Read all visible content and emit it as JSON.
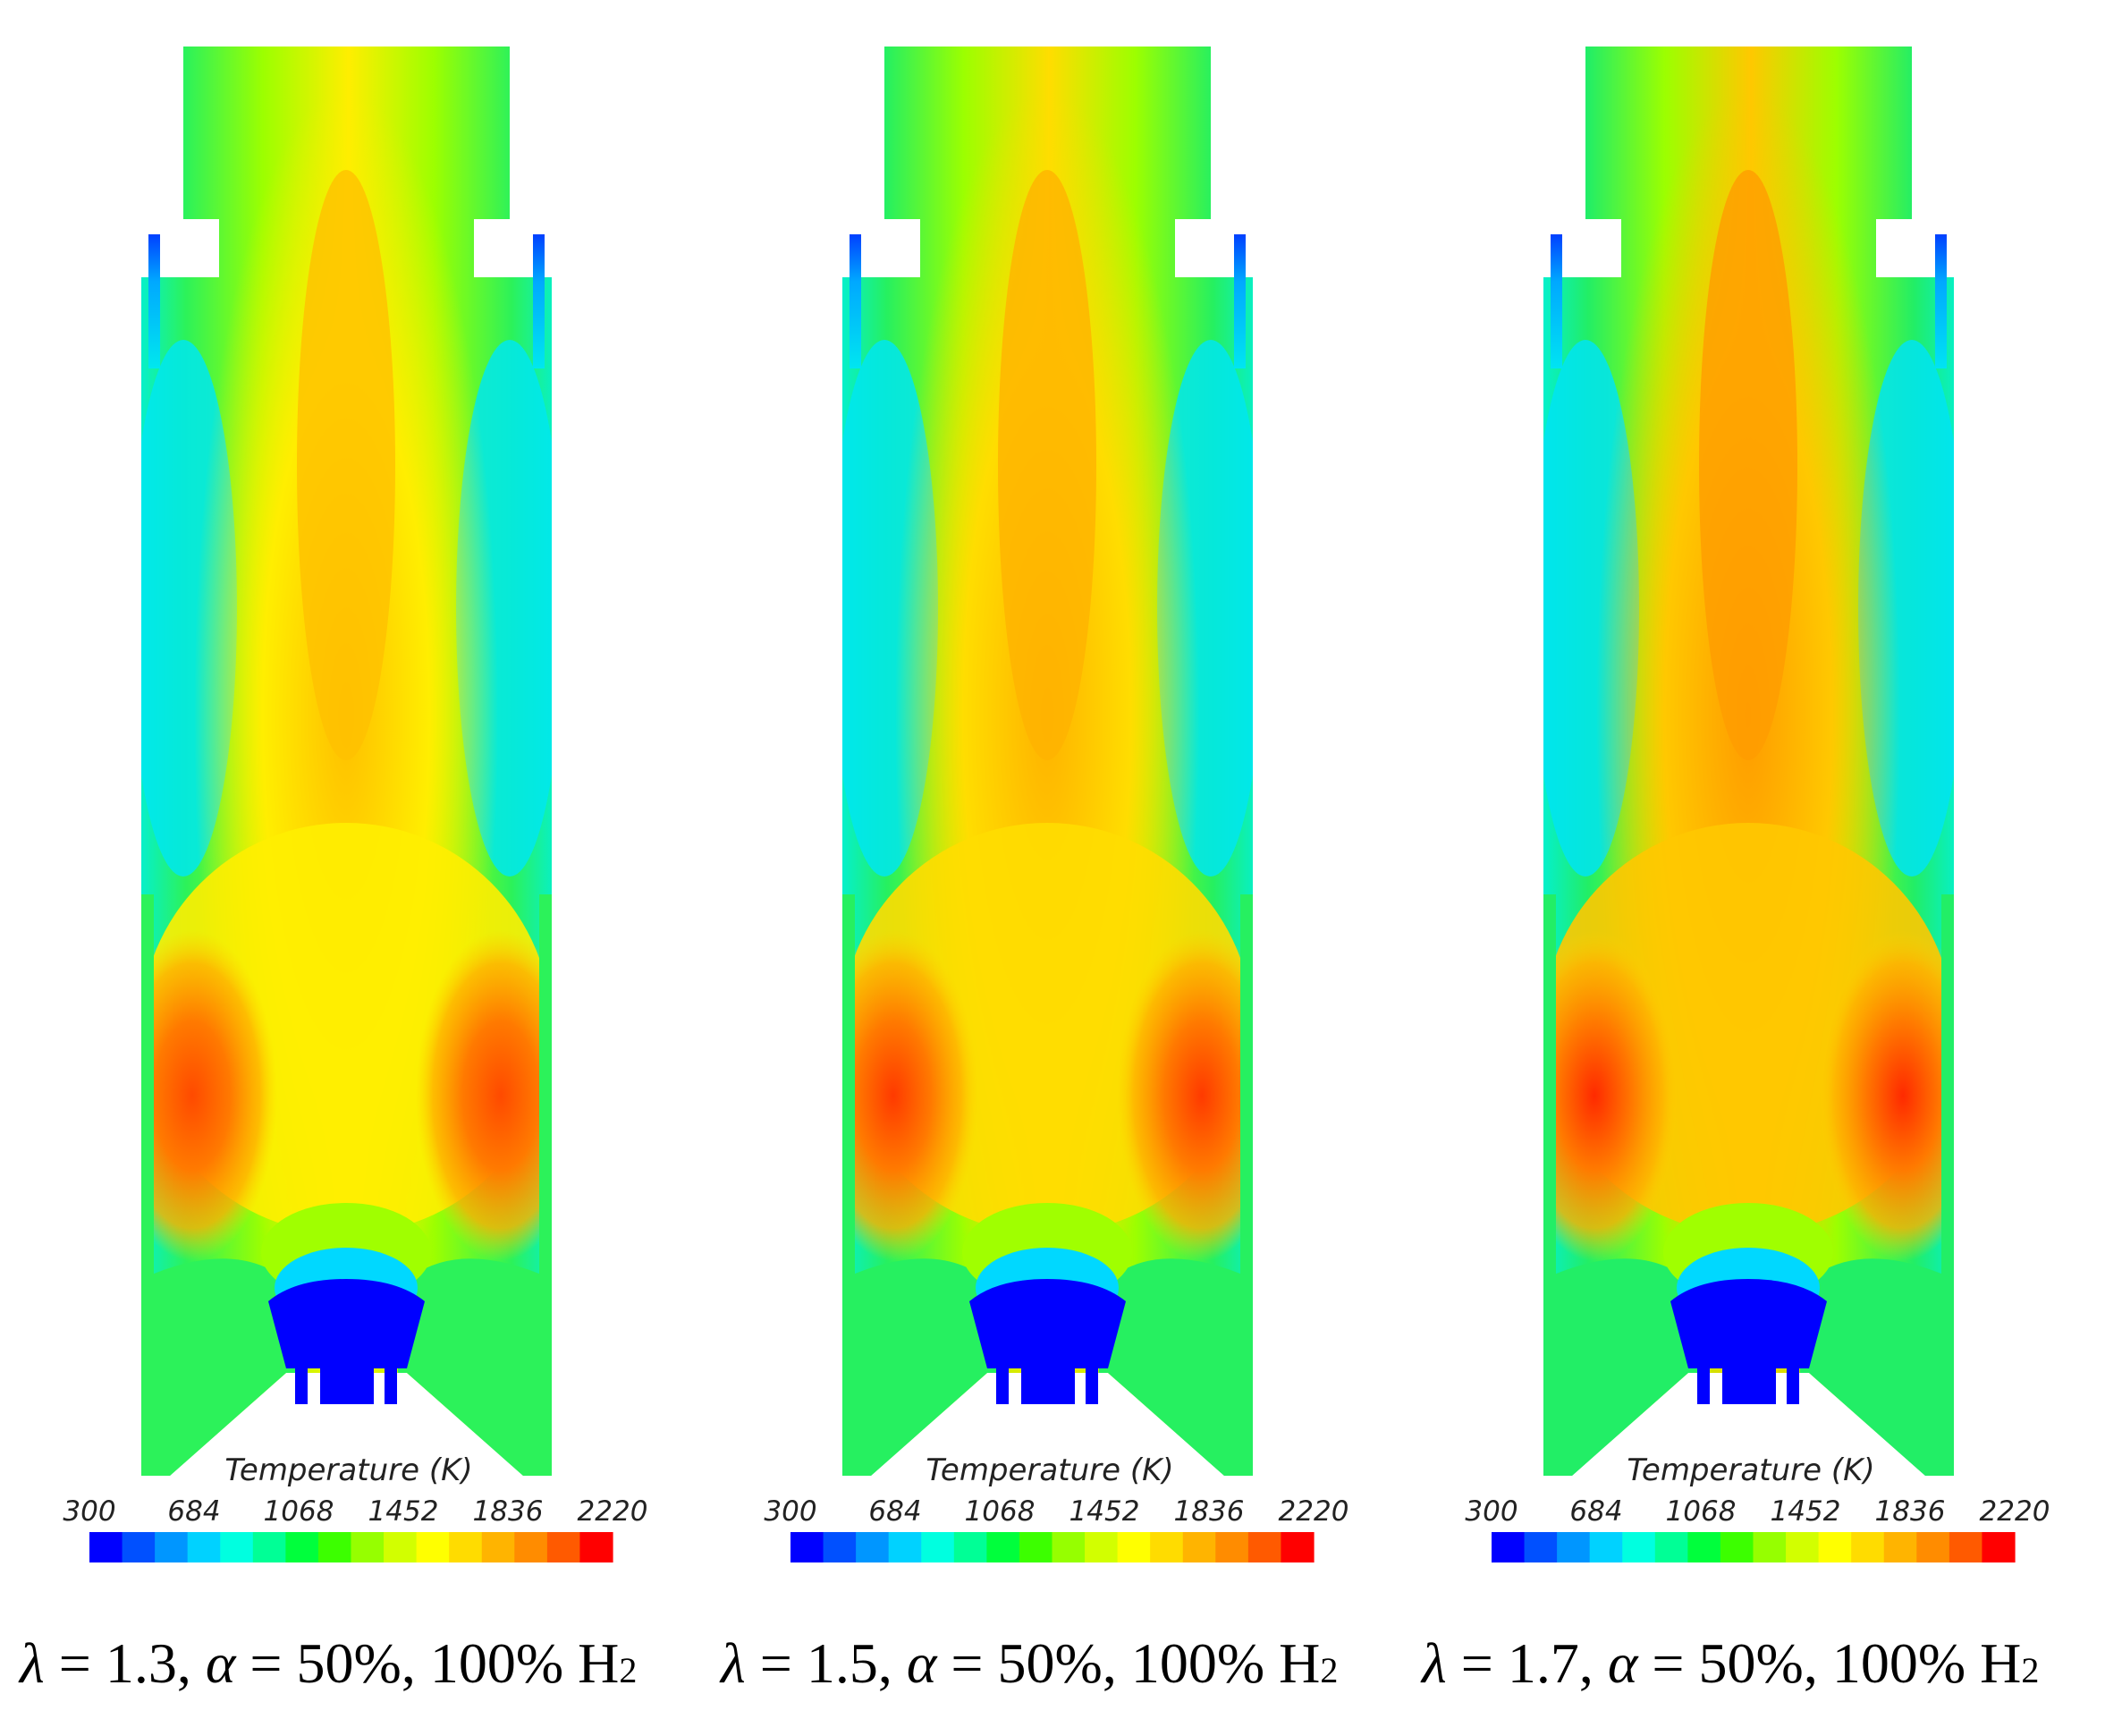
{
  "colorbar": {
    "title": "Temperature (K)",
    "ticks": [
      "300",
      "684",
      "1068",
      "1452",
      "1836",
      "2220"
    ],
    "min": 300,
    "max": 2220,
    "colors": [
      "#0000ff",
      "#0050ff",
      "#0096ff",
      "#00d2ff",
      "#00ffe0",
      "#00ff96",
      "#00ff3c",
      "#3cff00",
      "#96ff00",
      "#d2ff00",
      "#ffff00",
      "#ffdc00",
      "#ffb400",
      "#ff8c00",
      "#ff5a00",
      "#ff0000"
    ]
  },
  "panels": [
    {
      "caption": {
        "lambda_sym": "λ",
        "lambda_text": " = 1.3, ",
        "alpha_sym": "α",
        "alpha_text": " = 50%, 100% H",
        "sub": "2"
      },
      "field": {
        "core": "#ffee00",
        "mid": "#ffc000",
        "hot": "#ff4a00",
        "wall": "#2cf25a",
        "jet": "#00e8ee"
      }
    },
    {
      "caption": {
        "lambda_sym": "λ",
        "lambda_text": " = 1.5, ",
        "alpha_sym": "α",
        "alpha_text": " = 50%, 100% H",
        "sub": "2"
      },
      "field": {
        "core": "#ffdd00",
        "mid": "#ffb300",
        "hot": "#ff3a00",
        "wall": "#26f060",
        "jet": "#00e6f0"
      }
    },
    {
      "caption": {
        "lambda_sym": "λ",
        "lambda_text": " = 1.7, ",
        "alpha_sym": "α",
        "alpha_text": " = 50%, 100% H",
        "sub": "2"
      },
      "field": {
        "core": "#ffc800",
        "mid": "#ff9c00",
        "hot": "#ff2a00",
        "wall": "#22ee66",
        "jet": "#00e4f2"
      }
    }
  ]
}
